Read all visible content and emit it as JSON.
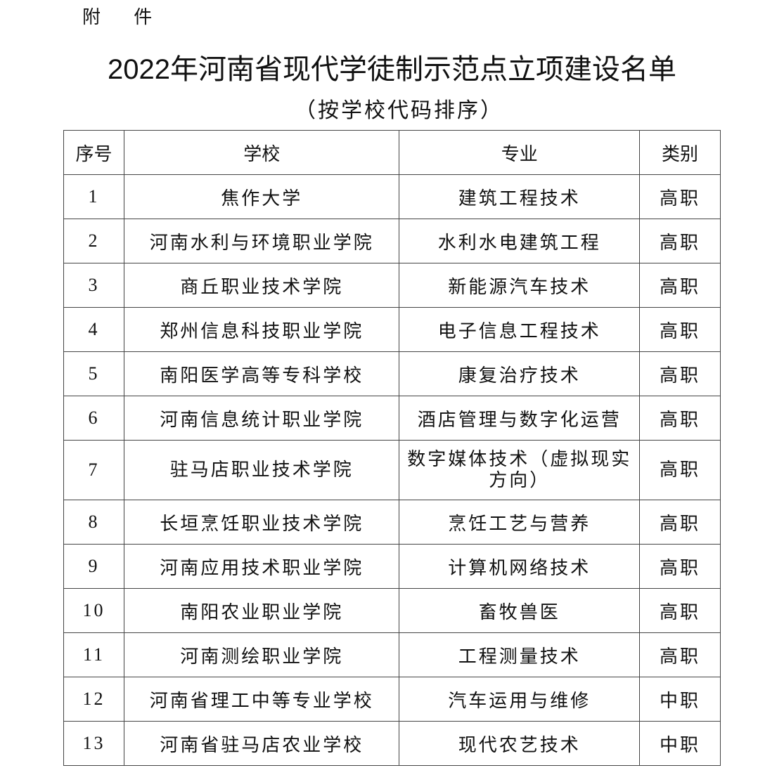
{
  "attachment_label": "附 件",
  "title": "2022年河南省现代学徒制示范点立项建设名单",
  "subtitle": "（按学校代码排序）",
  "table": {
    "headers": [
      "序号",
      "学校",
      "专业",
      "类别"
    ],
    "rows": [
      [
        "1",
        "焦作大学",
        "建筑工程技术",
        "高职"
      ],
      [
        "2",
        "河南水利与环境职业学院",
        "水利水电建筑工程",
        "高职"
      ],
      [
        "3",
        "商丘职业技术学院",
        "新能源汽车技术",
        "高职"
      ],
      [
        "4",
        "郑州信息科技职业学院",
        "电子信息工程技术",
        "高职"
      ],
      [
        "5",
        "南阳医学高等专科学校",
        "康复治疗技术",
        "高职"
      ],
      [
        "6",
        "河南信息统计职业学院",
        "酒店管理与数字化运营",
        "高职"
      ],
      [
        "7",
        "驻马店职业技术学院",
        "数字媒体技术（虚拟现实方向）",
        "高职"
      ],
      [
        "8",
        "长垣烹饪职业技术学院",
        "烹饪工艺与营养",
        "高职"
      ],
      [
        "9",
        "河南应用技术职业学院",
        "计算机网络技术",
        "高职"
      ],
      [
        "10",
        "南阳农业职业学院",
        "畜牧兽医",
        "高职"
      ],
      [
        "11",
        "河南测绘职业学院",
        "工程测量技术",
        "高职"
      ],
      [
        "12",
        "河南省理工中等专业学校",
        "汽车运用与维修",
        "中职"
      ],
      [
        "13",
        "河南省驻马店农业学校",
        "现代农艺技术",
        "中职"
      ]
    ]
  }
}
